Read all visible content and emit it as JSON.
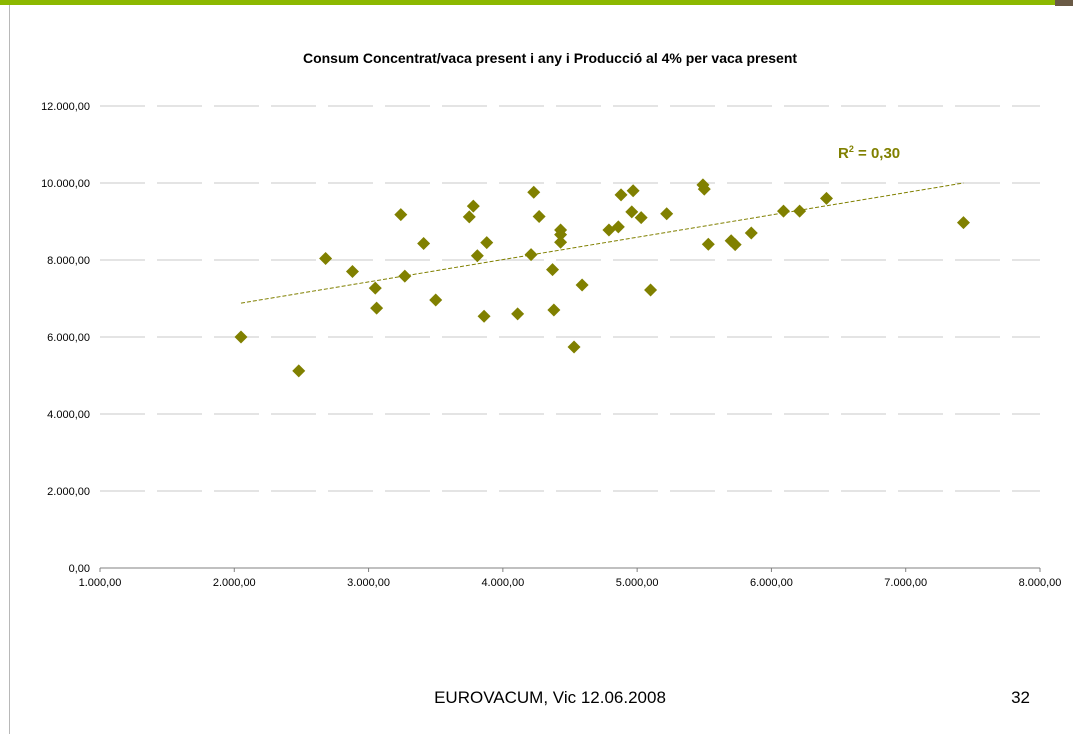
{
  "slide": {
    "footer": "EUROVACUM, Vic 12.06.2008",
    "page_number": "32",
    "accent_color": "#8cb800"
  },
  "chart_data": {
    "type": "scatter",
    "title": "Consum Concentrat/vaca present i any i Producció al 4% per vaca present",
    "xlabel": "",
    "ylabel": "",
    "xlim": [
      1000,
      8000
    ],
    "ylim": [
      0,
      12000
    ],
    "x_ticks": [
      "1.000,00",
      "2.000,00",
      "3.000,00",
      "4.000,00",
      "5.000,00",
      "6.000,00",
      "7.000,00",
      "8.000,00"
    ],
    "y_ticks": [
      "0,00",
      "2.000,00",
      "4.000,00",
      "6.000,00",
      "8.000,00",
      "10.000,00",
      "12.000,00"
    ],
    "x_tick_values": [
      1000,
      2000,
      3000,
      4000,
      5000,
      6000,
      7000,
      8000
    ],
    "y_tick_values": [
      0,
      2000,
      4000,
      6000,
      8000,
      10000,
      12000
    ],
    "grid": "horizontal",
    "marker_color": "#808000",
    "trendline": {
      "label_prefix": "R",
      "label_sup": "2",
      "label_suffix": " = 0,30",
      "x": [
        2050,
        7430
      ],
      "y": [
        6880,
        10000
      ],
      "color": "#808000"
    },
    "points": [
      [
        2050,
        6000
      ],
      [
        2480,
        5120
      ],
      [
        2680,
        8040
      ],
      [
        2880,
        7700
      ],
      [
        3050,
        7270
      ],
      [
        3060,
        6750
      ],
      [
        3240,
        9180
      ],
      [
        3270,
        7580
      ],
      [
        3410,
        8430
      ],
      [
        3500,
        6960
      ],
      [
        3750,
        9120
      ],
      [
        3780,
        9400
      ],
      [
        3810,
        8110
      ],
      [
        3860,
        6540
      ],
      [
        3880,
        8450
      ],
      [
        4110,
        6600
      ],
      [
        4210,
        8140
      ],
      [
        4230,
        9760
      ],
      [
        4270,
        9130
      ],
      [
        4370,
        7750
      ],
      [
        4380,
        6700
      ],
      [
        4430,
        8780
      ],
      [
        4430,
        8460
      ],
      [
        4430,
        8660
      ],
      [
        4530,
        5740
      ],
      [
        4590,
        7350
      ],
      [
        4790,
        8780
      ],
      [
        4860,
        8860
      ],
      [
        4880,
        9690
      ],
      [
        4960,
        9250
      ],
      [
        4970,
        9800
      ],
      [
        5030,
        9100
      ],
      [
        5100,
        7220
      ],
      [
        5220,
        9200
      ],
      [
        5490,
        9950
      ],
      [
        5500,
        9840
      ],
      [
        5530,
        8410
      ],
      [
        5700,
        8500
      ],
      [
        5730,
        8400
      ],
      [
        5850,
        8700
      ],
      [
        6090,
        9270
      ],
      [
        6210,
        9270
      ],
      [
        6410,
        9600
      ],
      [
        7430,
        8970
      ]
    ]
  }
}
